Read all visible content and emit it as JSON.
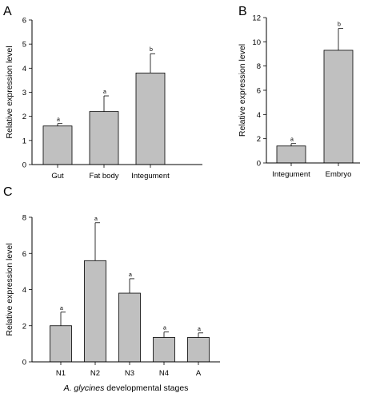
{
  "colors": {
    "bar_fill": "#c0c0c0",
    "bar_stroke": "#000000",
    "axis": "#000000"
  },
  "chart_data": [
    {
      "type": "bar",
      "panel_label": "A",
      "ylabel": "Relative expression level",
      "xlabel": "",
      "ylim": [
        0,
        6
      ],
      "yticks": [
        0,
        1,
        2,
        3,
        4,
        5,
        6
      ],
      "categories": [
        "Gut",
        "Fat body",
        "Integument"
      ],
      "values": [
        1.6,
        2.2,
        3.8
      ],
      "errors": [
        0.1,
        0.65,
        0.8
      ],
      "significance": [
        "a",
        "a",
        "b"
      ],
      "grid": false,
      "legend": "none"
    },
    {
      "type": "bar",
      "panel_label": "B",
      "ylabel": "Relative expression level",
      "xlabel": "",
      "ylim": [
        0,
        12
      ],
      "yticks": [
        0,
        2,
        4,
        6,
        8,
        10,
        12
      ],
      "categories": [
        "Integument",
        "Embryo"
      ],
      "values": [
        1.4,
        9.3
      ],
      "errors": [
        0.2,
        1.8
      ],
      "significance": [
        "a",
        "b"
      ],
      "grid": false,
      "legend": "none"
    },
    {
      "type": "bar",
      "panel_label": "C",
      "ylabel": "Relative expression level",
      "xlabel": "developmental stages",
      "xlabel_italic_prefix": "A. glycines",
      "ylim": [
        0,
        8
      ],
      "yticks": [
        0,
        2,
        4,
        6,
        8
      ],
      "categories": [
        "N1",
        "N2",
        "N3",
        "N4",
        "A"
      ],
      "values": [
        2.0,
        5.6,
        3.8,
        1.35,
        1.35
      ],
      "errors": [
        0.75,
        2.1,
        0.8,
        0.3,
        0.25
      ],
      "significance": [
        "a",
        "a",
        "a",
        "a",
        "a"
      ],
      "grid": false,
      "legend": "none"
    }
  ]
}
